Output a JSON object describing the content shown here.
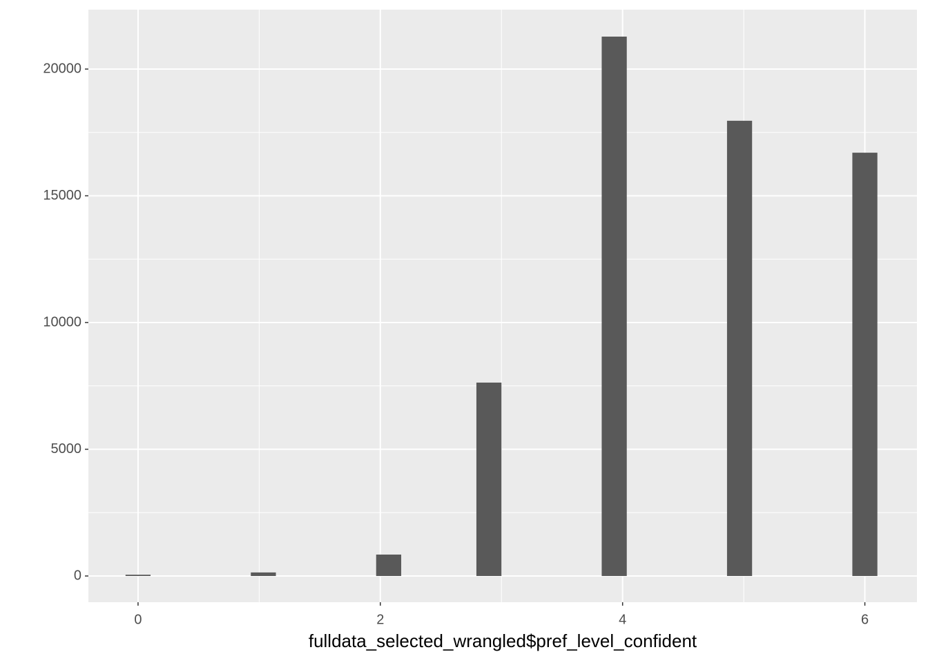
{
  "chart_data": {
    "type": "histogram",
    "x_label": "fulldata_selected_wrangled$pref_level_confident",
    "bins": [
      -0.1034,
      0.1034,
      0.3103,
      0.5172,
      0.7241,
      0.931,
      1.1379,
      1.3448,
      1.5517,
      1.7586,
      1.9655,
      2.1724,
      2.3793,
      2.5862,
      2.7931,
      3.0,
      3.2069,
      3.4138,
      3.6207,
      3.8276,
      4.0345,
      4.2414,
      4.4483,
      4.6552,
      4.8621,
      5.069,
      5.2759,
      5.4828,
      5.6897,
      5.8966,
      6.1034
    ],
    "values": [
      50,
      0,
      0,
      0,
      0,
      140,
      0,
      0,
      0,
      0,
      845,
      0,
      0,
      0,
      7630,
      0,
      0,
      0,
      0,
      21280,
      0,
      0,
      0,
      0,
      17960,
      0,
      0,
      0,
      0,
      16700
    ],
    "color": "#595959",
    "xlim": [
      -0.41,
      6.43
    ],
    "xticks": [
      0,
      2,
      4,
      6
    ],
    "ylim": [
      -1035,
      22343
    ],
    "yticks": [
      0,
      5000,
      10000,
      15000,
      20000
    ],
    "grid": true
  }
}
